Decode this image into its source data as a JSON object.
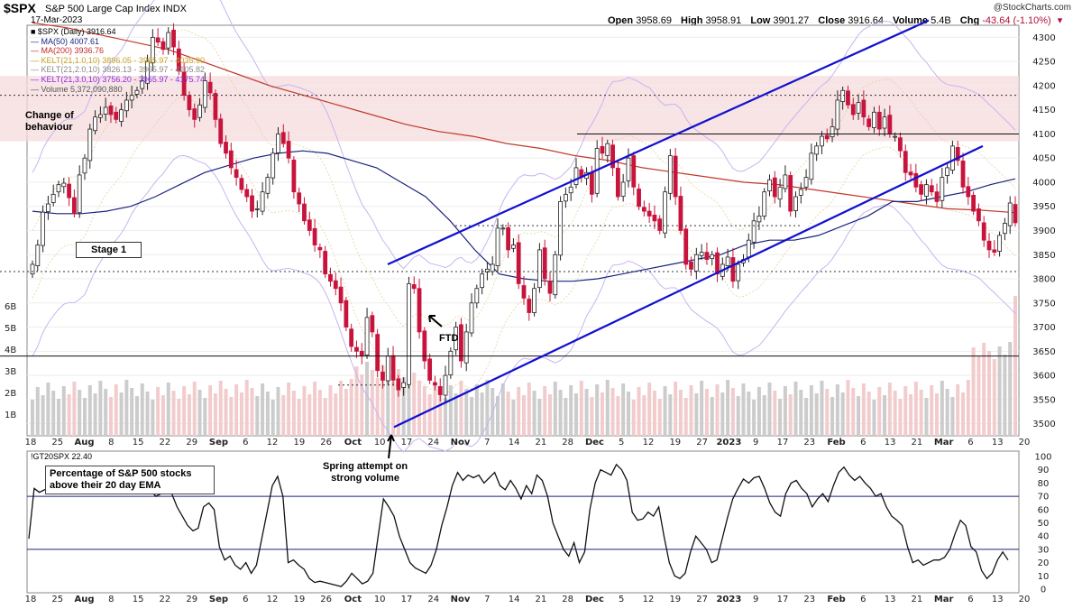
{
  "header": {
    "symbol": "$SPX",
    "name": "S&P 500 Large Cap Index",
    "exchange": "INDX",
    "date": "17-Mar-2023",
    "brand": "@StockCharts.com",
    "open_label": "Open",
    "open": "3958.69",
    "high_label": "High",
    "high": "3958.91",
    "low_label": "Low",
    "low": "3901.27",
    "close_label": "Close",
    "close": "3916.64",
    "volume_label": "Volume",
    "volume": "5.4B",
    "chg_label": "Chg",
    "chg": "-43.64 (-1.10%)"
  },
  "legend": [
    {
      "text": "$SPX (Daily) 3916.64",
      "color": "#000000"
    },
    {
      "text": "MA(50) 4007.61",
      "color": "#1a237e"
    },
    {
      "text": "MA(200) 3936.76",
      "color": "#c62828"
    },
    {
      "text": "KELT(21,1.0,10) 3896.05 - 3965.97 - 4035.90",
      "color": "#c9a227"
    },
    {
      "text": "KELT(21,2.0,10) 3826.13 - 3965.97 - 4105.82",
      "color": "#888888"
    },
    {
      "text": "KELT(21,3.0,10) 3756.20 - 3965.97 - 4175.74",
      "color": "#8a2be2"
    },
    {
      "text": "Volume 5,372,090,880",
      "color": "#555555"
    }
  ],
  "annotations": {
    "change": "Change of\nbehaviour",
    "stage": "Stage 1",
    "ftd": "FTD",
    "spring": "Spring attempt on\nstrong volume"
  },
  "indicator": {
    "legend": "!GT20SPX 22.40",
    "box": "Percentage of S&P 500 stocks\nabove their 20 day EMA"
  },
  "chart_data": {
    "type": "candlestick",
    "price_axis": {
      "ticks": [
        3500,
        3550,
        3600,
        3650,
        3700,
        3750,
        3800,
        3850,
        3900,
        3950,
        4000,
        4050,
        4100,
        4150,
        4200,
        4250,
        4300
      ],
      "ylim": [
        3475,
        4325
      ]
    },
    "volume_axis": {
      "ticks": [
        "1B",
        "2B",
        "3B",
        "4B",
        "5B",
        "6B"
      ]
    },
    "x_tick_labels": [
      "18",
      "25",
      "Aug",
      "8",
      "15",
      "22",
      "29",
      "Sep",
      "6",
      "12",
      "19",
      "26",
      "Oct",
      "10",
      "17",
      "24",
      "Nov",
      "7",
      "14",
      "21",
      "28",
      "Dec",
      "5",
      "12",
      "19",
      "27",
      "2023",
      "9",
      "17",
      "23",
      "Feb",
      "6",
      "13",
      "21",
      "Mar",
      "6",
      "13",
      "20"
    ],
    "x_tick_bold": [
      "Aug",
      "Sep",
      "Oct",
      "Nov",
      "Dec",
      "2023",
      "Feb",
      "Mar"
    ],
    "close": [
      3830,
      3870,
      3938,
      3955,
      3975,
      3995,
      3998,
      3968,
      3935,
      4015,
      4050,
      4110,
      4135,
      4140,
      4155,
      4140,
      4130,
      4150,
      4170,
      4180,
      4190,
      4210,
      4250,
      4300,
      4290,
      4275,
      4310,
      4280,
      4230,
      4180,
      4150,
      4130,
      4160,
      4210,
      4185,
      4130,
      4080,
      4060,
      4030,
      4010,
      3985,
      3970,
      3940,
      3945,
      3980,
      4010,
      4060,
      4100,
      4080,
      4050,
      3980,
      3955,
      3920,
      3900,
      3870,
      3860,
      3810,
      3795,
      3780,
      3750,
      3700,
      3660,
      3650,
      3640,
      3720,
      3690,
      3610,
      3590,
      3640,
      3590,
      3570,
      3585,
      3790,
      3780,
      3690,
      3630,
      3590,
      3580,
      3560,
      3600,
      3650,
      3700,
      3630,
      3690,
      3750,
      3780,
      3810,
      3820,
      3830,
      3905,
      3905,
      3860,
      3870,
      3790,
      3760,
      3730,
      3780,
      3860,
      3800,
      3770,
      3850,
      3960,
      3975,
      3990,
      4030,
      4010,
      4020,
      3975,
      4070,
      4060,
      4080,
      4030,
      3970,
      4000,
      4050,
      3990,
      3950,
      3940,
      3930,
      3920,
      3900,
      3980,
      4055,
      3970,
      3900,
      3830,
      3820,
      3850,
      3855,
      3840,
      3850,
      3810,
      3830,
      3845,
      3795,
      3830,
      3840,
      3880,
      3920,
      3930,
      3980,
      4005,
      3970,
      3990,
      4015,
      3940,
      3970,
      3985,
      4010,
      4060,
      4075,
      4095,
      4090,
      4115,
      4170,
      4190,
      4160,
      4140,
      4165,
      4135,
      4115,
      4145,
      4110,
      4135,
      4100,
      4095,
      4065,
      4020,
      4015,
      3990,
      3975,
      3995,
      3980,
      3960,
      4010,
      4030,
      4075,
      4045,
      3990,
      3970,
      3940,
      3920,
      3880,
      3860,
      3855,
      3890,
      3915,
      3957,
      3916
    ],
    "ma50": [
      3940,
      3935,
      3935,
      3940,
      3950,
      3970,
      3995,
      4020,
      4035,
      4050,
      4060,
      4065,
      4060,
      4045,
      4030,
      4000,
      3970,
      3920,
      3860,
      3810,
      3800,
      3795,
      3795,
      3800,
      3810,
      3820,
      3830,
      3840,
      3850,
      3870,
      3880,
      3880,
      3890,
      3910,
      3930,
      3960,
      3960,
      3970,
      3980,
      3995,
      4007
    ],
    "ma200": [
      4330,
      4320,
      4305,
      4290,
      4275,
      4250,
      4225,
      4200,
      4180,
      4160,
      4140,
      4120,
      4105,
      4095,
      4080,
      4070,
      4055,
      4045,
      4030,
      4020,
      4010,
      4000,
      3995,
      3985,
      3975,
      3965,
      3955,
      3945,
      3942,
      3937
    ],
    "breadth_pct": [
      38,
      76,
      73,
      75,
      76,
      74,
      75,
      74,
      73,
      76,
      75,
      74,
      78,
      75,
      78,
      80,
      76,
      77,
      74,
      77,
      78,
      75,
      76,
      74,
      70,
      72,
      75,
      72,
      62,
      55,
      48,
      44,
      46,
      62,
      65,
      60,
      32,
      22,
      25,
      18,
      15,
      20,
      12,
      18,
      38,
      58,
      78,
      85,
      70,
      20,
      22,
      18,
      15,
      8,
      5,
      6,
      5,
      4,
      3,
      2,
      6,
      12,
      8,
      4,
      6,
      12,
      40,
      68,
      62,
      55,
      40,
      30,
      20,
      16,
      14,
      12,
      18,
      30,
      48,
      62,
      78,
      88,
      82,
      86,
      84,
      86,
      80,
      84,
      88,
      78,
      75,
      82,
      76,
      68,
      78,
      72,
      86,
      82,
      70,
      50,
      40,
      30,
      25,
      35,
      20,
      28,
      60,
      80,
      90,
      88,
      86,
      94,
      90,
      82,
      58,
      52,
      53,
      58,
      55,
      62,
      40,
      20,
      10,
      8,
      12,
      28,
      40,
      35,
      30,
      20,
      22,
      38,
      54,
      68,
      76,
      83,
      80,
      84,
      85,
      76,
      65,
      58,
      55,
      72,
      80,
      82,
      76,
      72,
      62,
      68,
      72,
      66,
      78,
      88,
      92,
      86,
      82,
      85,
      80,
      76,
      70,
      72,
      62,
      55,
      52,
      48,
      32,
      20,
      22,
      18,
      20,
      22,
      22,
      24,
      30,
      42,
      52,
      48,
      32,
      28,
      14,
      8,
      12,
      22,
      28,
      22
    ]
  }
}
